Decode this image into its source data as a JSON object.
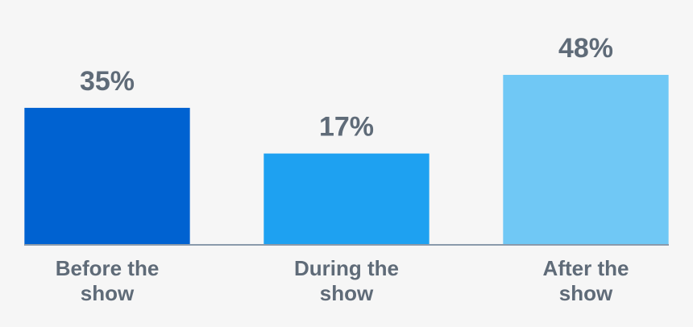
{
  "chart_data": {
    "type": "bar",
    "categories": [
      "Before the show",
      "During the show",
      "After the show"
    ],
    "values": [
      35,
      17,
      48
    ],
    "value_labels": [
      "35%",
      "17%",
      "48%"
    ],
    "colors": [
      "#0062d1",
      "#1ea1f1",
      "#70c8f5"
    ],
    "ylim": [
      -19,
      77
    ]
  }
}
